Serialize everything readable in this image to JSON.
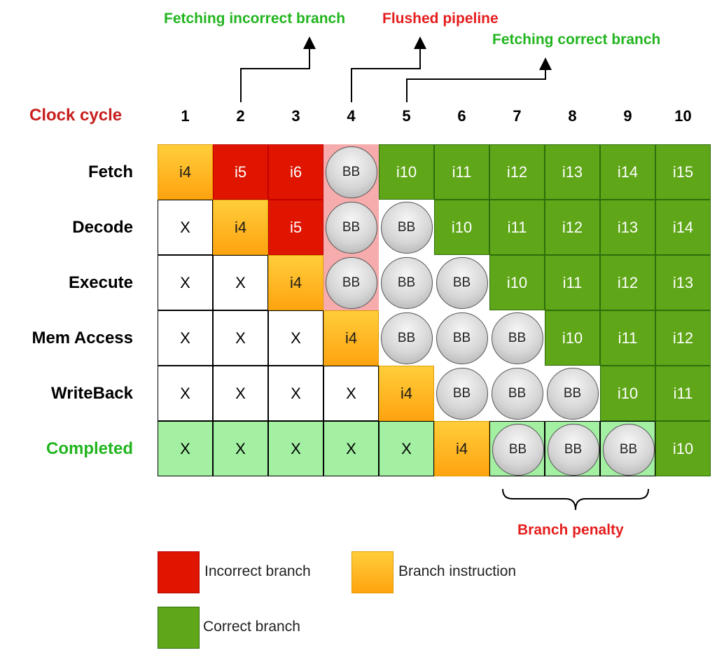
{
  "annotations": {
    "incorrect": "Fetching incorrect branch",
    "flushed": "Flushed pipeline",
    "correct": "Fetching correct branch",
    "penalty": "Branch penalty"
  },
  "clock_label": "Clock cycle",
  "cycles": [
    "1",
    "2",
    "3",
    "4",
    "5",
    "6",
    "7",
    "8",
    "9",
    "10"
  ],
  "rows": [
    {
      "label": "Fetch",
      "cells": [
        {
          "v": "i4",
          "t": "orange"
        },
        {
          "v": "i5",
          "t": "red"
        },
        {
          "v": "i6",
          "t": "red"
        },
        {
          "v": "BB",
          "t": "pink",
          "bb": true
        },
        {
          "v": "i10",
          "t": "green"
        },
        {
          "v": "i11",
          "t": "green"
        },
        {
          "v": "i12",
          "t": "green"
        },
        {
          "v": "i13",
          "t": "green"
        },
        {
          "v": "i14",
          "t": "green"
        },
        {
          "v": "i15",
          "t": "green"
        }
      ]
    },
    {
      "label": "Decode",
      "cells": [
        {
          "v": "X",
          "t": "white"
        },
        {
          "v": "i4",
          "t": "orange"
        },
        {
          "v": "i5",
          "t": "red"
        },
        {
          "v": "BB",
          "t": "pink",
          "bb": true
        },
        {
          "v": "BB",
          "t": "none",
          "bb": true
        },
        {
          "v": "i10",
          "t": "green"
        },
        {
          "v": "i11",
          "t": "green"
        },
        {
          "v": "i12",
          "t": "green"
        },
        {
          "v": "i13",
          "t": "green"
        },
        {
          "v": "i14",
          "t": "green"
        }
      ]
    },
    {
      "label": "Execute",
      "cells": [
        {
          "v": "X",
          "t": "white"
        },
        {
          "v": "X",
          "t": "white"
        },
        {
          "v": "i4",
          "t": "orange"
        },
        {
          "v": "BB",
          "t": "pink",
          "bb": true
        },
        {
          "v": "BB",
          "t": "none",
          "bb": true
        },
        {
          "v": "BB",
          "t": "none",
          "bb": true
        },
        {
          "v": "i10",
          "t": "green"
        },
        {
          "v": "i11",
          "t": "green"
        },
        {
          "v": "i12",
          "t": "green"
        },
        {
          "v": "i13",
          "t": "green"
        }
      ]
    },
    {
      "label": "Mem Access",
      "cells": [
        {
          "v": "X",
          "t": "white"
        },
        {
          "v": "X",
          "t": "white"
        },
        {
          "v": "X",
          "t": "white"
        },
        {
          "v": "i4",
          "t": "orange"
        },
        {
          "v": "BB",
          "t": "none",
          "bb": true
        },
        {
          "v": "BB",
          "t": "none",
          "bb": true
        },
        {
          "v": "BB",
          "t": "none",
          "bb": true
        },
        {
          "v": "i10",
          "t": "green"
        },
        {
          "v": "i11",
          "t": "green"
        },
        {
          "v": "i12",
          "t": "green"
        }
      ]
    },
    {
      "label": "WriteBack",
      "cells": [
        {
          "v": "X",
          "t": "white"
        },
        {
          "v": "X",
          "t": "white"
        },
        {
          "v": "X",
          "t": "white"
        },
        {
          "v": "X",
          "t": "white"
        },
        {
          "v": "i4",
          "t": "orange"
        },
        {
          "v": "BB",
          "t": "none",
          "bb": true
        },
        {
          "v": "BB",
          "t": "none",
          "bb": true
        },
        {
          "v": "BB",
          "t": "none",
          "bb": true
        },
        {
          "v": "i10",
          "t": "green"
        },
        {
          "v": "i11",
          "t": "green"
        }
      ]
    },
    {
      "label": "Completed",
      "label_color": "#22b51f",
      "cells": [
        {
          "v": "X",
          "t": "lightgreen"
        },
        {
          "v": "X",
          "t": "lightgreen"
        },
        {
          "v": "X",
          "t": "lightgreen"
        },
        {
          "v": "X",
          "t": "lightgreen"
        },
        {
          "v": "X",
          "t": "lightgreen"
        },
        {
          "v": "i4",
          "t": "orange"
        },
        {
          "v": "BB",
          "t": "lightgreen",
          "bb": true
        },
        {
          "v": "BB",
          "t": "lightgreen",
          "bb": true
        },
        {
          "v": "BB",
          "t": "lightgreen",
          "bb": true
        },
        {
          "v": "i10",
          "t": "green"
        }
      ]
    }
  ],
  "legend": {
    "incorrect": "Incorrect branch",
    "branch_instruction": "Branch instruction",
    "correct": "Correct branch"
  },
  "colors": {
    "incorrect": "#e01500",
    "branch": "#ffb520",
    "correct": "#5fa618",
    "completed": "#a3f0a3",
    "flushed": "#f6acac"
  }
}
